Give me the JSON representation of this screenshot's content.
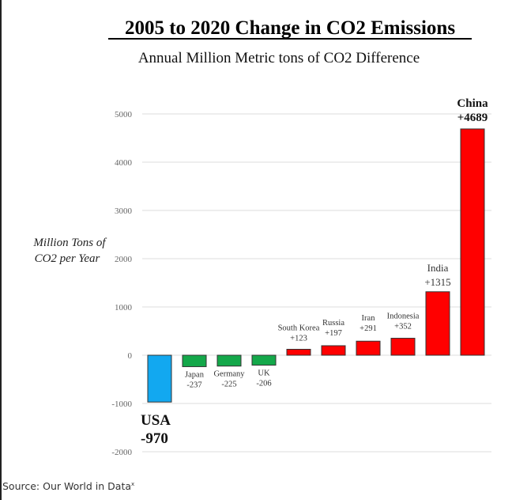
{
  "chart_data": {
    "type": "bar",
    "title": "2005 to 2020 Change in CO2 Emissions",
    "subtitle": "Annual Million Metric tons of CO2 Difference",
    "ylabel": [
      "Million Tons of",
      "CO2 per Year"
    ],
    "xlabel": "",
    "ylim": [
      -2000,
      5000
    ],
    "yticks": [
      5000,
      4000,
      3000,
      2000,
      1000,
      0,
      -1000,
      -2000
    ],
    "grid": true,
    "categories": [
      "USA",
      "Japan",
      "Germany",
      "UK",
      "South Korea",
      "Russia",
      "Iran",
      "Indonesia",
      "India",
      "China"
    ],
    "values": [
      -970,
      -237,
      -225,
      -206,
      123,
      197,
      291,
      352,
      1315,
      4689
    ],
    "value_labels": [
      "-970",
      "-237",
      "-225",
      "-206",
      "+123",
      "+197",
      "+291",
      "+352",
      "+1315",
      "+4689"
    ],
    "colors": [
      "#12a8f0",
      "#14a84a",
      "#14a84a",
      "#14a84a",
      "#ff0000",
      "#ff0000",
      "#ff0000",
      "#ff0000",
      "#ff0000",
      "#ff0000"
    ],
    "legend": null
  },
  "source": {
    "label": "Source: Our World in Data",
    "mark": "x"
  }
}
